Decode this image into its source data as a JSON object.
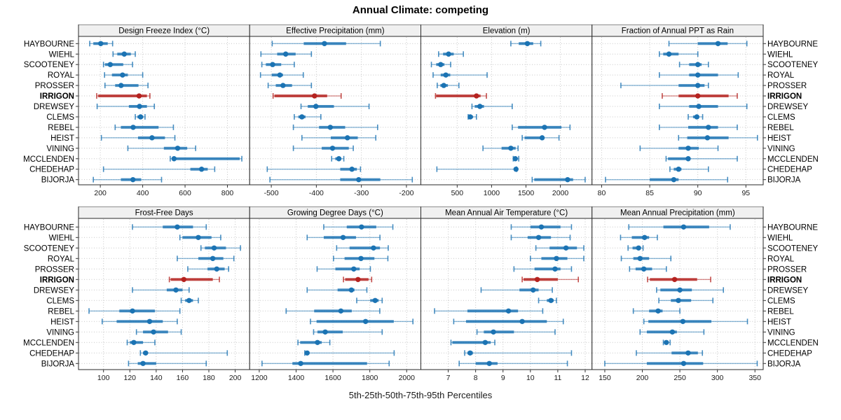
{
  "title": "Annual Climate: competing",
  "caption": "5th-25th-50th-75th-95th Percentiles",
  "highlight_site": "IRRIGON",
  "sites": [
    "HAYBOURNE",
    "WIEHL",
    "SCOOTENEY",
    "ROYAL",
    "PROSSER",
    "IRRIGON",
    "DREWSEY",
    "CLEMS",
    "REBEL",
    "HEIST",
    "VINING",
    "MCCLENDEN",
    "CHEDEHAP",
    "BIJORJA"
  ],
  "colors": {
    "series_blue": "#1b73b3",
    "highlight_red": "#b5221f",
    "grid": "#c6c6c6",
    "panel_border": "#2a2a2a",
    "header_bg": "#f0f0f0",
    "tick_color": "#333333"
  },
  "chart_data": {
    "type": "dot-interval-trellis",
    "percentiles": [
      5,
      25,
      50,
      75,
      95
    ],
    "layout": {
      "rows": 2,
      "cols": 4,
      "legend": "none",
      "grid": "dotted"
    },
    "panels": [
      {
        "title": "Design Freeze Index (°C)",
        "row": 0,
        "col": 0,
        "ticks": [
          200,
          400,
          600,
          800
        ],
        "range": [
          97,
          905
        ],
        "values": [
          [
            150,
            167,
            202,
            235,
            258
          ],
          [
            260,
            280,
            313,
            344,
            365
          ],
          [
            215,
            222,
            247,
            308,
            352
          ],
          [
            220,
            255,
            305,
            330,
            400
          ],
          [
            222,
            270,
            298,
            380,
            425
          ],
          [
            183,
            190,
            383,
            420,
            434
          ],
          [
            185,
            335,
            385,
            420,
            455
          ],
          [
            365,
            375,
            390,
            403,
            411
          ],
          [
            270,
            297,
            355,
            475,
            545
          ],
          [
            205,
            378,
            444,
            505,
            552
          ],
          [
            330,
            500,
            565,
            610,
            650
          ],
          [
            530,
            540,
            548,
            858,
            868
          ],
          [
            215,
            625,
            678,
            707,
            740
          ],
          [
            167,
            297,
            354,
            393,
            489
          ]
        ]
      },
      {
        "title": "Effective Precipitation (mm)",
        "row": 0,
        "col": 1,
        "ticks": [
          -500,
          -400,
          -300,
          -200
        ],
        "range": [
          -548,
          -168
        ],
        "values": [
          [
            -498,
            -428,
            -382,
            -334,
            -258
          ],
          [
            -523,
            -487,
            -468,
            -446,
            -411
          ],
          [
            -521,
            -512,
            -497,
            -478,
            -449
          ],
          [
            -524,
            -499,
            -481,
            -474,
            -429
          ],
          [
            -507,
            -490,
            -474,
            -454,
            -411
          ],
          [
            -496,
            -493,
            -404,
            -376,
            -345
          ],
          [
            -434,
            -419,
            -401,
            -361,
            -283
          ],
          [
            -449,
            -440,
            -432,
            -424,
            -390
          ],
          [
            -451,
            -394,
            -369,
            -336,
            -264
          ],
          [
            -432,
            -368,
            -331,
            -308,
            -268
          ],
          [
            -451,
            -388,
            -364,
            -328,
            -318
          ],
          [
            -366,
            -358,
            -350,
            -345,
            -339
          ],
          [
            -509,
            -347,
            -321,
            -310,
            -302
          ],
          [
            -503,
            -347,
            -306,
            -258,
            -187
          ]
        ]
      },
      {
        "title": "Elevation (m)",
        "row": 0,
        "col": 2,
        "ticks": [
          500,
          1000,
          1500,
          2000
        ],
        "range": [
          -28,
          2460
        ],
        "values": [
          [
            1280,
            1395,
            1520,
            1605,
            1715
          ],
          [
            230,
            295,
            375,
            450,
            590
          ],
          [
            125,
            195,
            260,
            315,
            405
          ],
          [
            150,
            260,
            335,
            400,
            935
          ],
          [
            210,
            255,
            305,
            365,
            525
          ],
          [
            185,
            195,
            780,
            840,
            925
          ],
          [
            715,
            755,
            830,
            890,
            1300
          ],
          [
            660,
            670,
            690,
            730,
            780
          ],
          [
            1300,
            1385,
            1770,
            2015,
            2140
          ],
          [
            1445,
            1480,
            1735,
            1760,
            1980
          ],
          [
            875,
            1145,
            1280,
            1350,
            1385
          ],
          [
            1315,
            1325,
            1345,
            1365,
            1395
          ],
          [
            205,
            1325,
            1355,
            1360,
            1365
          ],
          [
            1590,
            1620,
            2105,
            2185,
            2360
          ]
        ]
      },
      {
        "title": "Fraction of Annual PPT as Rain",
        "row": 0,
        "col": 3,
        "ticks": [
          80,
          85,
          90,
          95
        ],
        "range": [
          79,
          96.8
        ],
        "values": [
          [
            87,
            90,
            92.1,
            93.1,
            95.1
          ],
          [
            86,
            86.4,
            87,
            88,
            90
          ],
          [
            88.1,
            89.1,
            90,
            90.4,
            91.1
          ],
          [
            86,
            89.1,
            90,
            92.1,
            94.2
          ],
          [
            82,
            88,
            90,
            90.7,
            91.1
          ],
          [
            86.3,
            88,
            90,
            93.2,
            94.1
          ],
          [
            86,
            89.1,
            90.1,
            92.1,
            95.1
          ],
          [
            89,
            89.5,
            89.9,
            90.1,
            90.5
          ],
          [
            86,
            89,
            91.1,
            92.1,
            94.1
          ],
          [
            88,
            88.9,
            91,
            93.2,
            96.2
          ],
          [
            84,
            88,
            89,
            90.1,
            92.1
          ],
          [
            86.7,
            86.9,
            89,
            89.2,
            94.1
          ],
          [
            87.1,
            87.5,
            88,
            88.3,
            91.1
          ],
          [
            80.4,
            85,
            87.5,
            88,
            93.1
          ]
        ]
      },
      {
        "title": "Frost-Free Days",
        "row": 1,
        "col": 0,
        "ticks": [
          100,
          120,
          140,
          160,
          180,
          200
        ],
        "range": [
          81,
          211
        ],
        "values": [
          [
            122,
            145,
            156,
            168,
            178
          ],
          [
            158,
            160,
            172,
            182,
            189
          ],
          [
            174,
            177,
            184,
            193,
            204
          ],
          [
            156,
            172,
            183,
            191,
            199
          ],
          [
            164,
            179,
            186,
            192,
            195
          ],
          [
            150,
            151,
            161,
            183,
            188
          ],
          [
            122,
            148,
            155,
            160,
            165
          ],
          [
            159,
            162,
            165,
            168,
            172
          ],
          [
            89,
            112,
            122,
            139,
            158
          ],
          [
            99,
            110,
            135,
            145,
            156
          ],
          [
            125,
            130,
            138,
            149,
            159
          ],
          [
            118,
            120,
            123,
            130,
            139
          ],
          [
            128,
            130,
            132,
            133,
            194
          ],
          [
            119,
            126,
            130,
            140,
            178
          ]
        ]
      },
      {
        "title": "Growing Degree Days (°C)",
        "row": 1,
        "col": 1,
        "ticks": [
          1200,
          1400,
          1600,
          1800,
          2000
        ],
        "range": [
          1148,
          2077
        ],
        "values": [
          [
            1550,
            1675,
            1755,
            1835,
            1925
          ],
          [
            1460,
            1550,
            1655,
            1725,
            1855
          ],
          [
            1620,
            1690,
            1820,
            1855,
            1900
          ],
          [
            1603,
            1663,
            1752,
            1825,
            1898
          ],
          [
            1514,
            1613,
            1713,
            1745,
            1803
          ],
          [
            1657,
            1666,
            1736,
            1793,
            1810
          ],
          [
            1460,
            1625,
            1700,
            1717,
            1784
          ],
          [
            1729,
            1802,
            1829,
            1848,
            1867
          ],
          [
            1346,
            1498,
            1643,
            1702,
            1854
          ],
          [
            1478,
            1511,
            1777,
            1930,
            2034
          ],
          [
            1495,
            1516,
            1558,
            1653,
            1867
          ],
          [
            1410,
            1422,
            1516,
            1539,
            1583
          ],
          [
            1447,
            1452,
            1460,
            1470,
            1932
          ],
          [
            1215,
            1380,
            1425,
            1785,
            1905
          ]
        ]
      },
      {
        "title": "Mean Annual Air Temperature (°C)",
        "row": 1,
        "col": 2,
        "ticks": [
          7,
          8,
          9,
          10,
          11,
          12
        ],
        "range": [
          6,
          12.25
        ],
        "values": [
          [
            9.3,
            10,
            10.4,
            11.1,
            11.5
          ],
          [
            9.3,
            9.9,
            10.3,
            10.75,
            11.45
          ],
          [
            10.2,
            10.7,
            11.3,
            11.7,
            11.95
          ],
          [
            10,
            10.4,
            10.95,
            11.35,
            11.95
          ],
          [
            9.4,
            10.15,
            10.9,
            11.1,
            11.5
          ],
          [
            9.7,
            9.75,
            10.25,
            11,
            11.75
          ],
          [
            8.2,
            9.6,
            10.1,
            10.3,
            10.8
          ],
          [
            10.3,
            10.6,
            10.75,
            10.85,
            10.95
          ],
          [
            6.5,
            7.7,
            9.2,
            9.55,
            10.45
          ],
          [
            7.2,
            7.65,
            9.7,
            10.6,
            11.2
          ],
          [
            8.05,
            8.3,
            8.65,
            9.4,
            10.9
          ],
          [
            7.1,
            7.15,
            8.35,
            8.55,
            8.7
          ],
          [
            7.6,
            7.7,
            7.8,
            7.9,
            11.5
          ],
          [
            7.4,
            8,
            8.5,
            8.8,
            11.35
          ]
        ]
      },
      {
        "title": "Mean Annual Precipitation (mm)",
        "row": 1,
        "col": 3,
        "ticks": [
          150,
          200,
          250,
          300,
          350
        ],
        "range": [
          133,
          361
        ],
        "values": [
          [
            182,
            228,
            255,
            289,
            317
          ],
          [
            171,
            186,
            203,
            209,
            220
          ],
          [
            181,
            187,
            195,
            198,
            201
          ],
          [
            172,
            188,
            197,
            209,
            238
          ],
          [
            183,
            191,
            202,
            213,
            232
          ],
          [
            207,
            210,
            243,
            273,
            291
          ],
          [
            219,
            224,
            250,
            266,
            308
          ],
          [
            222,
            238,
            248,
            265,
            294
          ],
          [
            188,
            209,
            221,
            227,
            250
          ],
          [
            202,
            208,
            254,
            292,
            340
          ],
          [
            197,
            206,
            240,
            246,
            282
          ],
          [
            228,
            230,
            232,
            235,
            237
          ],
          [
            192,
            239,
            261,
            274,
            280
          ],
          [
            150,
            206,
            255,
            281,
            353
          ]
        ]
      }
    ]
  }
}
